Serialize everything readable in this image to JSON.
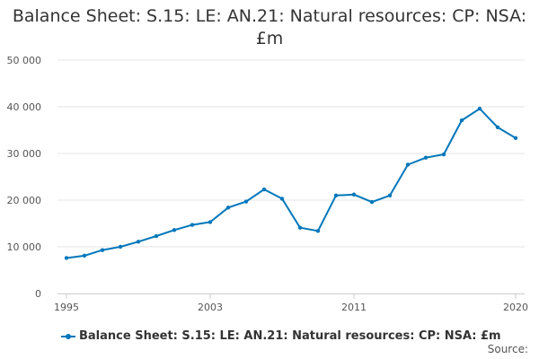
{
  "chart_data": {
    "type": "line",
    "title_lines": [
      "Balance Sheet: S.15: LE: AN.21: Natural resources: CP: NSA:",
      "£m"
    ],
    "xlabel": "",
    "ylabel": "",
    "x": [
      1995,
      1996,
      1997,
      1998,
      1999,
      2000,
      2001,
      2002,
      2003,
      2004,
      2005,
      2006,
      2007,
      2008,
      2009,
      2010,
      2011,
      2012,
      2013,
      2014,
      2015,
      2016,
      2017,
      2018,
      2019,
      2020
    ],
    "series": [
      {
        "name": "Balance Sheet: S.15: LE: AN.21: Natural resources: CP: NSA: £m",
        "color": "#0077bb",
        "values": [
          7600,
          8100,
          9300,
          10000,
          11100,
          12300,
          13600,
          14700,
          15300,
          18400,
          19700,
          22300,
          20300,
          14100,
          13400,
          21000,
          21200,
          19600,
          21000,
          27600,
          29100,
          29800,
          37100,
          39600,
          35600,
          33300
        ]
      }
    ],
    "ylim": [
      0,
      50000
    ],
    "xlim": [
      1995,
      2020
    ],
    "y_ticks": [
      {
        "value": 0,
        "label": "0"
      },
      {
        "value": 10000,
        "label": "10 000"
      },
      {
        "value": 20000,
        "label": "20 000"
      },
      {
        "value": 30000,
        "label": "30 000"
      },
      {
        "value": 40000,
        "label": "40 000"
      },
      {
        "value": 50000,
        "label": "50 000"
      }
    ],
    "x_ticks": [
      {
        "value": 1995,
        "label": "1995"
      },
      {
        "value": 2003,
        "label": "2003"
      },
      {
        "value": 2011,
        "label": "2011"
      },
      {
        "value": 2020,
        "label": "2020"
      }
    ],
    "grid": true,
    "legend_position": "bottom-left",
    "source_label": "Source:"
  }
}
